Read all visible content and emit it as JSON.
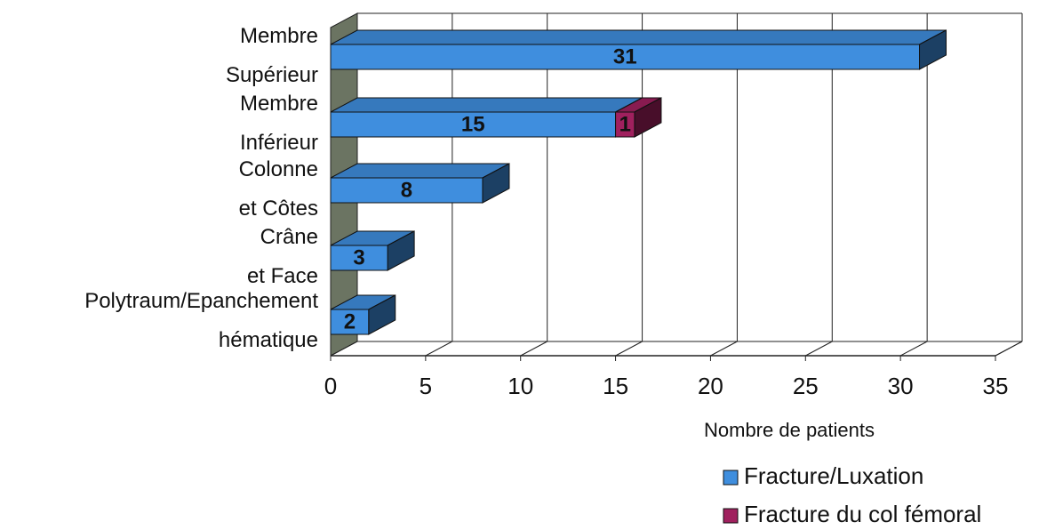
{
  "chart_data": {
    "type": "bar3d_horizontal_stacked",
    "categories": [
      "Membre Supérieur",
      "Membre Inférieur",
      "Colonne et Côtes",
      "Crâne et Face",
      "Polytraum/Epanchement hématique"
    ],
    "series": [
      {
        "name": "Fracture/Luxation",
        "color": "#3f8ede",
        "values": [
          31,
          15,
          8,
          3,
          2
        ]
      },
      {
        "name": "Fracture du col fémoral",
        "color": "#a0205e",
        "values": [
          null,
          1,
          null,
          null,
          null
        ]
      }
    ],
    "xlim": [
      0,
      35
    ],
    "xticks": [
      0,
      5,
      10,
      15,
      20,
      25,
      30,
      35
    ],
    "xlabel": "Nombre de patients",
    "grid": true,
    "legend": "lower right"
  }
}
